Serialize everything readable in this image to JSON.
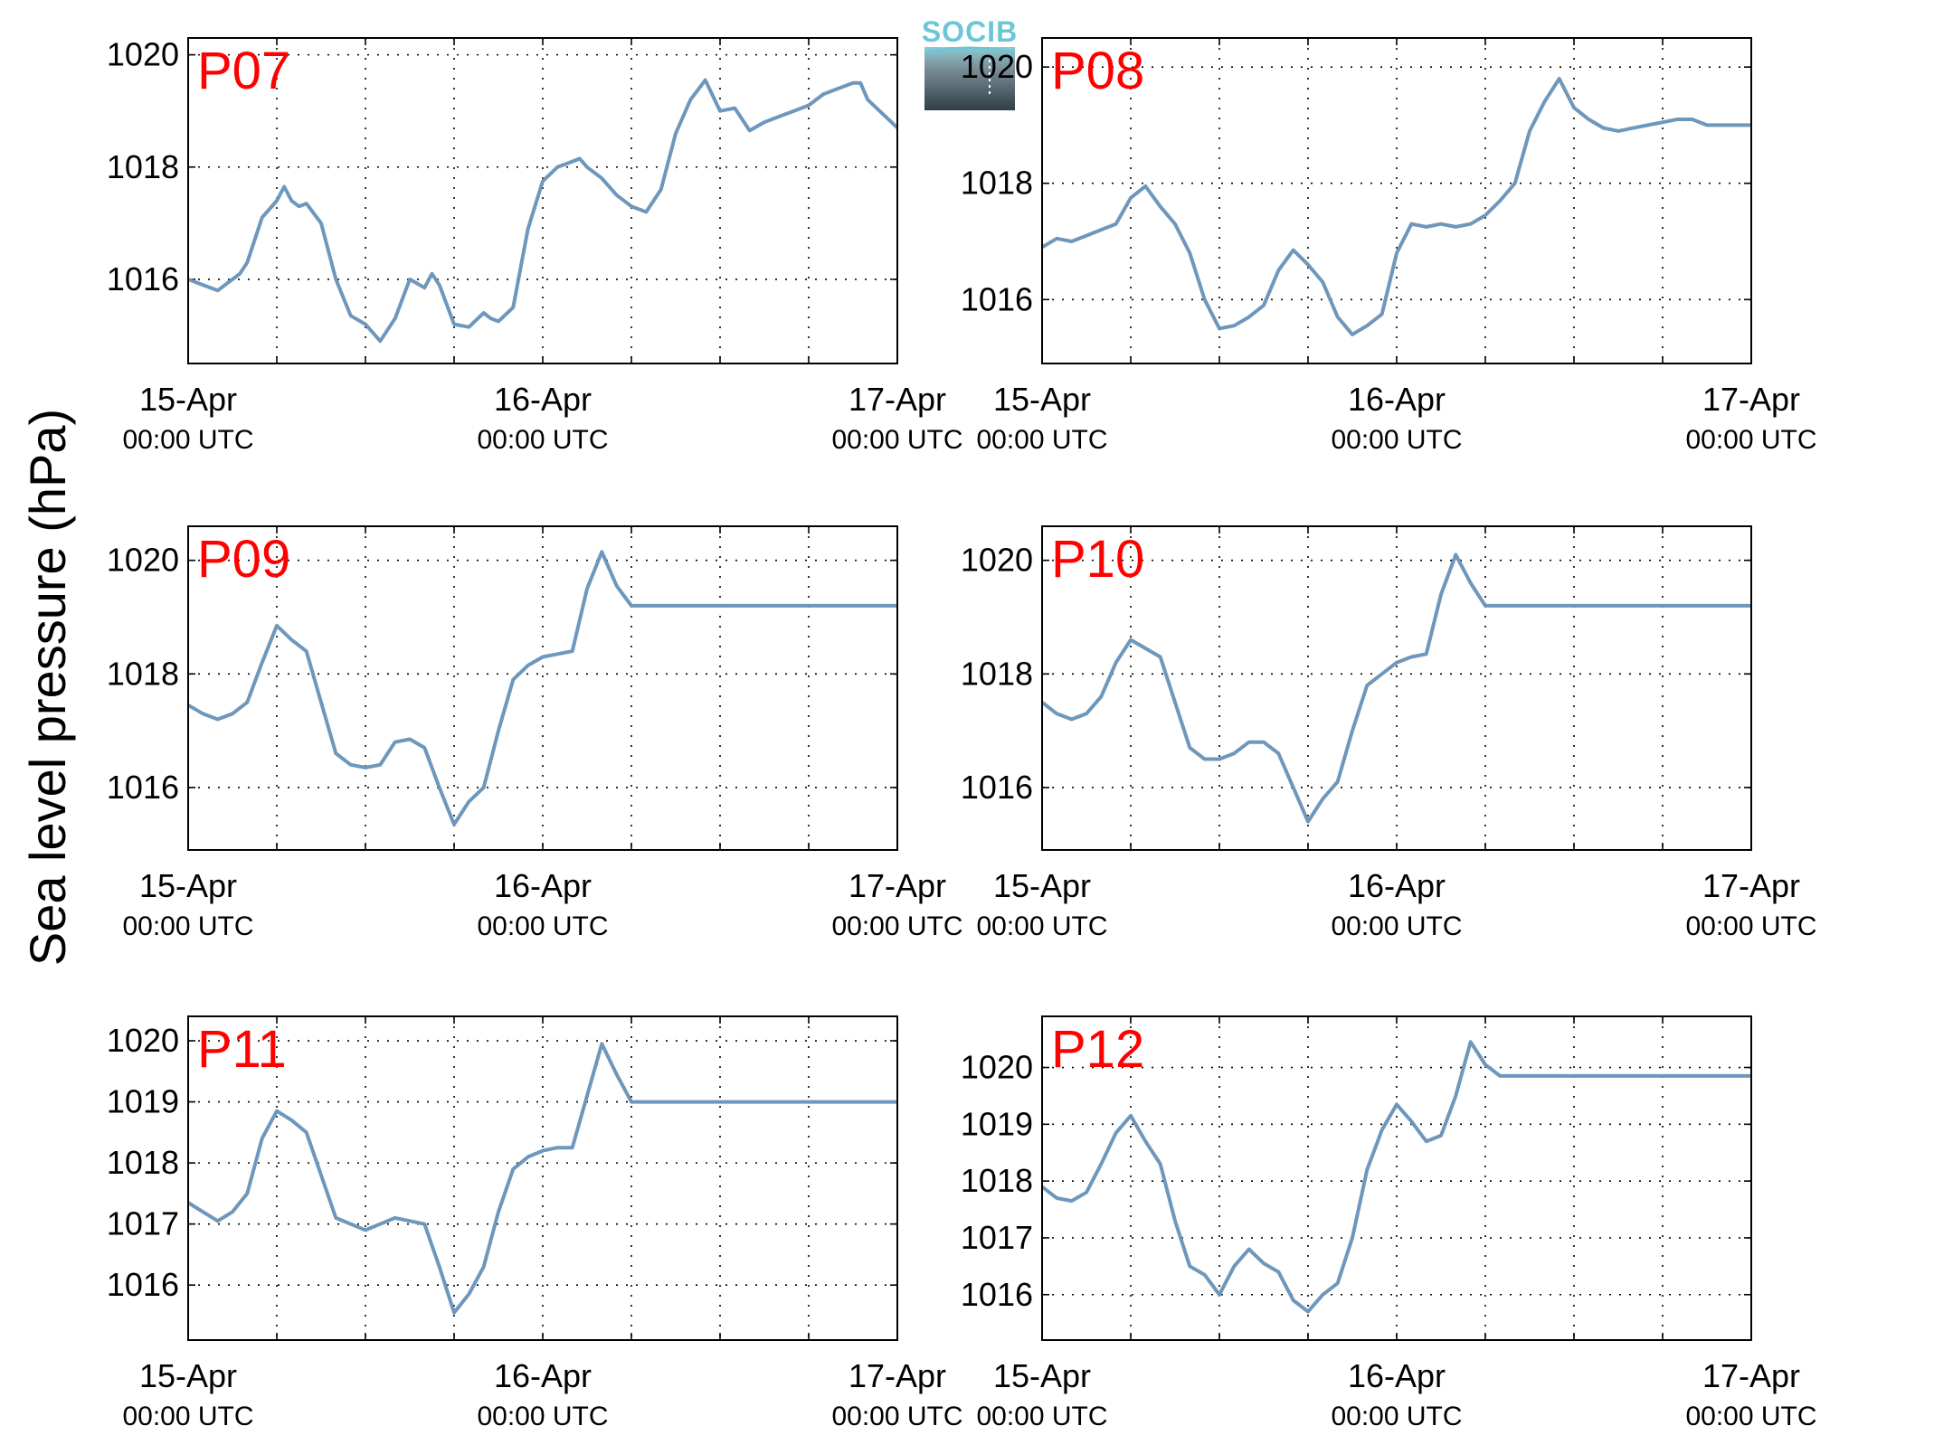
{
  "y_axis_label": "Sea level pressure (hPa)",
  "logo_text": "SOCIB",
  "colors": {
    "line": "#6e97bc",
    "panel_label": "#ff0000",
    "grid": "#000000"
  },
  "chart_data": [
    {
      "type": "line",
      "panel": "P07",
      "ylim": [
        1014.5,
        1020.3
      ],
      "yticks": [
        1016,
        1018,
        1020
      ],
      "xlim": [
        0,
        48
      ],
      "grid": true,
      "xticks": [
        {
          "x": 0,
          "label": "15-Apr",
          "sub": "00:00 UTC"
        },
        {
          "x": 24,
          "label": "16-Apr",
          "sub": "00:00 UTC"
        },
        {
          "x": 48,
          "label": "17-Apr",
          "sub": "00:00 UTC"
        }
      ],
      "series": [
        {
          "x": [
            0,
            1,
            2,
            3,
            3.5,
            4,
            5,
            6,
            6.5,
            7,
            7.5,
            8,
            9,
            10,
            11,
            12,
            13,
            14,
            15,
            16,
            16.5,
            17,
            18,
            19,
            20,
            20.5,
            21,
            22,
            23,
            24,
            25,
            26,
            26.5,
            27,
            28,
            29,
            30,
            31,
            32,
            33,
            34,
            35,
            36,
            37,
            38,
            39,
            40,
            41,
            42,
            43,
            44,
            45,
            45.5,
            46,
            47,
            48
          ],
          "y": [
            1016.0,
            1015.9,
            1015.8,
            1016.0,
            1016.1,
            1016.3,
            1017.1,
            1017.4,
            1017.65,
            1017.4,
            1017.3,
            1017.35,
            1017.0,
            1016.0,
            1015.35,
            1015.2,
            1014.9,
            1015.3,
            1016.0,
            1015.85,
            1016.1,
            1015.9,
            1015.2,
            1015.15,
            1015.4,
            1015.3,
            1015.25,
            1015.5,
            1016.9,
            1017.75,
            1018.0,
            1018.1,
            1018.15,
            1018.0,
            1017.8,
            1017.5,
            1017.3,
            1017.2,
            1017.6,
            1018.6,
            1019.2,
            1019.55,
            1019.0,
            1019.05,
            1018.65,
            1018.8,
            1018.9,
            1019.0,
            1019.1,
            1019.3,
            1019.4,
            1019.5,
            1019.5,
            1019.2,
            1018.95,
            1018.7
          ]
        }
      ]
    },
    {
      "type": "line",
      "panel": "P08",
      "ylim": [
        1014.9,
        1020.5
      ],
      "yticks": [
        1016,
        1018,
        1020
      ],
      "xlim": [
        0,
        48
      ],
      "grid": true,
      "xticks": [
        {
          "x": 0,
          "label": "15-Apr",
          "sub": "00:00 UTC"
        },
        {
          "x": 24,
          "label": "16-Apr",
          "sub": "00:00 UTC"
        },
        {
          "x": 48,
          "label": "17-Apr",
          "sub": "00:00 UTC"
        }
      ],
      "series": [
        {
          "x": [
            0,
            1,
            2,
            3,
            4,
            5,
            6,
            7,
            8,
            9,
            10,
            11,
            12,
            13,
            14,
            15,
            16,
            17,
            18,
            19,
            20,
            21,
            22,
            23,
            24,
            25,
            26,
            27,
            28,
            29,
            30,
            31,
            32,
            33,
            34,
            35,
            36,
            37,
            38,
            39,
            40,
            41,
            42,
            43,
            44,
            45,
            46,
            47,
            48
          ],
          "y": [
            1016.9,
            1017.05,
            1017.0,
            1017.1,
            1017.2,
            1017.3,
            1017.75,
            1017.95,
            1017.6,
            1017.3,
            1016.8,
            1016.0,
            1015.5,
            1015.55,
            1015.7,
            1015.9,
            1016.5,
            1016.85,
            1016.6,
            1016.3,
            1015.7,
            1015.4,
            1015.55,
            1015.75,
            1016.8,
            1017.3,
            1017.25,
            1017.3,
            1017.25,
            1017.3,
            1017.45,
            1017.7,
            1018.0,
            1018.9,
            1019.4,
            1019.8,
            1019.3,
            1019.1,
            1018.95,
            1018.9,
            1018.95,
            1019.0,
            1019.05,
            1019.1,
            1019.1,
            1019.0,
            1019.0,
            1019.0,
            1019.0
          ]
        }
      ]
    },
    {
      "type": "line",
      "panel": "P09",
      "ylim": [
        1014.9,
        1020.6
      ],
      "yticks": [
        1016,
        1018,
        1020
      ],
      "xlim": [
        0,
        48
      ],
      "grid": true,
      "xticks": [
        {
          "x": 0,
          "label": "15-Apr",
          "sub": "00:00 UTC"
        },
        {
          "x": 24,
          "label": "16-Apr",
          "sub": "00:00 UTC"
        },
        {
          "x": 48,
          "label": "17-Apr",
          "sub": "00:00 UTC"
        }
      ],
      "series": [
        {
          "x": [
            0,
            1,
            2,
            3,
            4,
            5,
            6,
            7,
            8,
            9,
            10,
            11,
            12,
            13,
            14,
            15,
            16,
            17,
            18,
            19,
            20,
            21,
            22,
            23,
            24,
            25,
            26,
            27,
            28,
            29,
            30,
            31,
            32,
            33,
            34,
            35,
            36,
            37,
            38,
            39,
            40,
            41,
            42,
            43,
            44,
            45,
            46,
            47,
            48
          ],
          "y": [
            1017.45,
            1017.3,
            1017.2,
            1017.3,
            1017.5,
            1018.2,
            1018.85,
            1018.6,
            1018.4,
            1017.5,
            1016.6,
            1016.4,
            1016.35,
            1016.4,
            1016.8,
            1016.85,
            1016.7,
            1016.0,
            1015.35,
            1015.75,
            1016.0,
            1017.0,
            1017.9,
            1018.15,
            1018.3,
            1018.35,
            1018.4,
            1019.5,
            1020.15,
            1019.55,
            1019.2,
            1019.2,
            1019.2,
            1019.2,
            1019.2,
            1019.2,
            1019.2,
            1019.2,
            1019.2,
            1019.2,
            1019.2,
            1019.2,
            1019.2,
            1019.2,
            1019.2,
            1019.2,
            1019.2,
            1019.2,
            1019.2
          ]
        }
      ]
    },
    {
      "type": "line",
      "panel": "P10",
      "ylim": [
        1014.9,
        1020.6
      ],
      "yticks": [
        1016,
        1018,
        1020
      ],
      "xlim": [
        0,
        48
      ],
      "grid": true,
      "xticks": [
        {
          "x": 0,
          "label": "15-Apr",
          "sub": "00:00 UTC"
        },
        {
          "x": 24,
          "label": "16-Apr",
          "sub": "00:00 UTC"
        },
        {
          "x": 48,
          "label": "17-Apr",
          "sub": "00:00 UTC"
        }
      ],
      "series": [
        {
          "x": [
            0,
            1,
            2,
            3,
            4,
            5,
            6,
            7,
            8,
            9,
            10,
            11,
            12,
            13,
            14,
            15,
            16,
            17,
            18,
            19,
            20,
            21,
            22,
            23,
            24,
            25,
            26,
            27,
            28,
            29,
            30,
            31,
            32,
            33,
            34,
            35,
            36,
            37,
            38,
            39,
            40,
            41,
            42,
            43,
            44,
            45,
            46,
            47,
            48
          ],
          "y": [
            1017.5,
            1017.3,
            1017.2,
            1017.3,
            1017.6,
            1018.2,
            1018.6,
            1018.45,
            1018.3,
            1017.5,
            1016.7,
            1016.5,
            1016.5,
            1016.6,
            1016.8,
            1016.8,
            1016.6,
            1016.0,
            1015.4,
            1015.8,
            1016.1,
            1017.0,
            1017.8,
            1018.0,
            1018.2,
            1018.3,
            1018.35,
            1019.4,
            1020.1,
            1019.6,
            1019.2,
            1019.2,
            1019.2,
            1019.2,
            1019.2,
            1019.2,
            1019.2,
            1019.2,
            1019.2,
            1019.2,
            1019.2,
            1019.2,
            1019.2,
            1019.2,
            1019.2,
            1019.2,
            1019.2,
            1019.2,
            1019.2
          ]
        }
      ]
    },
    {
      "type": "line",
      "panel": "P11",
      "ylim": [
        1015.1,
        1020.4
      ],
      "yticks": [
        1016,
        1017,
        1018,
        1019,
        1020
      ],
      "xlim": [
        0,
        48
      ],
      "grid": true,
      "xticks": [
        {
          "x": 0,
          "label": "15-Apr",
          "sub": "00:00 UTC"
        },
        {
          "x": 24,
          "label": "16-Apr",
          "sub": "00:00 UTC"
        },
        {
          "x": 48,
          "label": "17-Apr",
          "sub": "00:00 UTC"
        }
      ],
      "series": [
        {
          "x": [
            0,
            1,
            2,
            3,
            4,
            5,
            6,
            7,
            8,
            9,
            10,
            11,
            12,
            13,
            14,
            15,
            16,
            17,
            18,
            19,
            20,
            21,
            22,
            23,
            24,
            25,
            26,
            27,
            28,
            29,
            30,
            31,
            32,
            33,
            34,
            35,
            36,
            37,
            38,
            39,
            40,
            41,
            42,
            43,
            44,
            45,
            46,
            47,
            48
          ],
          "y": [
            1017.35,
            1017.2,
            1017.05,
            1017.2,
            1017.5,
            1018.4,
            1018.85,
            1018.7,
            1018.5,
            1017.8,
            1017.1,
            1017.0,
            1016.9,
            1017.0,
            1017.1,
            1017.05,
            1017.0,
            1016.3,
            1015.55,
            1015.85,
            1016.3,
            1017.2,
            1017.9,
            1018.1,
            1018.2,
            1018.25,
            1018.25,
            1019.1,
            1019.95,
            1019.45,
            1019.0,
            1019.0,
            1019.0,
            1019.0,
            1019.0,
            1019.0,
            1019.0,
            1019.0,
            1019.0,
            1019.0,
            1019.0,
            1019.0,
            1019.0,
            1019.0,
            1019.0,
            1019.0,
            1019.0,
            1019.0,
            1019.0
          ]
        }
      ]
    },
    {
      "type": "line",
      "panel": "P12",
      "ylim": [
        1015.2,
        1020.9
      ],
      "yticks": [
        1016,
        1017,
        1018,
        1019,
        1020
      ],
      "xlim": [
        0,
        48
      ],
      "grid": true,
      "xticks": [
        {
          "x": 0,
          "label": "15-Apr",
          "sub": "00:00 UTC"
        },
        {
          "x": 24,
          "label": "16-Apr",
          "sub": "00:00 UTC"
        },
        {
          "x": 48,
          "label": "17-Apr",
          "sub": "00:00 UTC"
        }
      ],
      "series": [
        {
          "x": [
            0,
            1,
            2,
            3,
            4,
            5,
            6,
            7,
            8,
            9,
            10,
            11,
            12,
            13,
            14,
            15,
            16,
            17,
            18,
            19,
            20,
            21,
            22,
            23,
            24,
            25,
            26,
            27,
            28,
            29,
            30,
            31,
            32,
            33,
            34,
            35,
            36,
            37,
            38,
            39,
            40,
            41,
            42,
            43,
            44,
            45,
            46,
            47,
            48
          ],
          "y": [
            1017.9,
            1017.7,
            1017.65,
            1017.8,
            1018.3,
            1018.85,
            1019.15,
            1018.7,
            1018.3,
            1017.3,
            1016.5,
            1016.35,
            1016.0,
            1016.5,
            1016.8,
            1016.55,
            1016.4,
            1015.9,
            1015.7,
            1016.0,
            1016.2,
            1017.0,
            1018.2,
            1018.9,
            1019.35,
            1019.05,
            1018.7,
            1018.8,
            1019.5,
            1020.45,
            1020.05,
            1019.85,
            1019.85,
            1019.85,
            1019.85,
            1019.85,
            1019.85,
            1019.85,
            1019.85,
            1019.85,
            1019.85,
            1019.85,
            1019.85,
            1019.85,
            1019.85,
            1019.85,
            1019.85,
            1019.85,
            1019.85
          ]
        }
      ]
    }
  ]
}
